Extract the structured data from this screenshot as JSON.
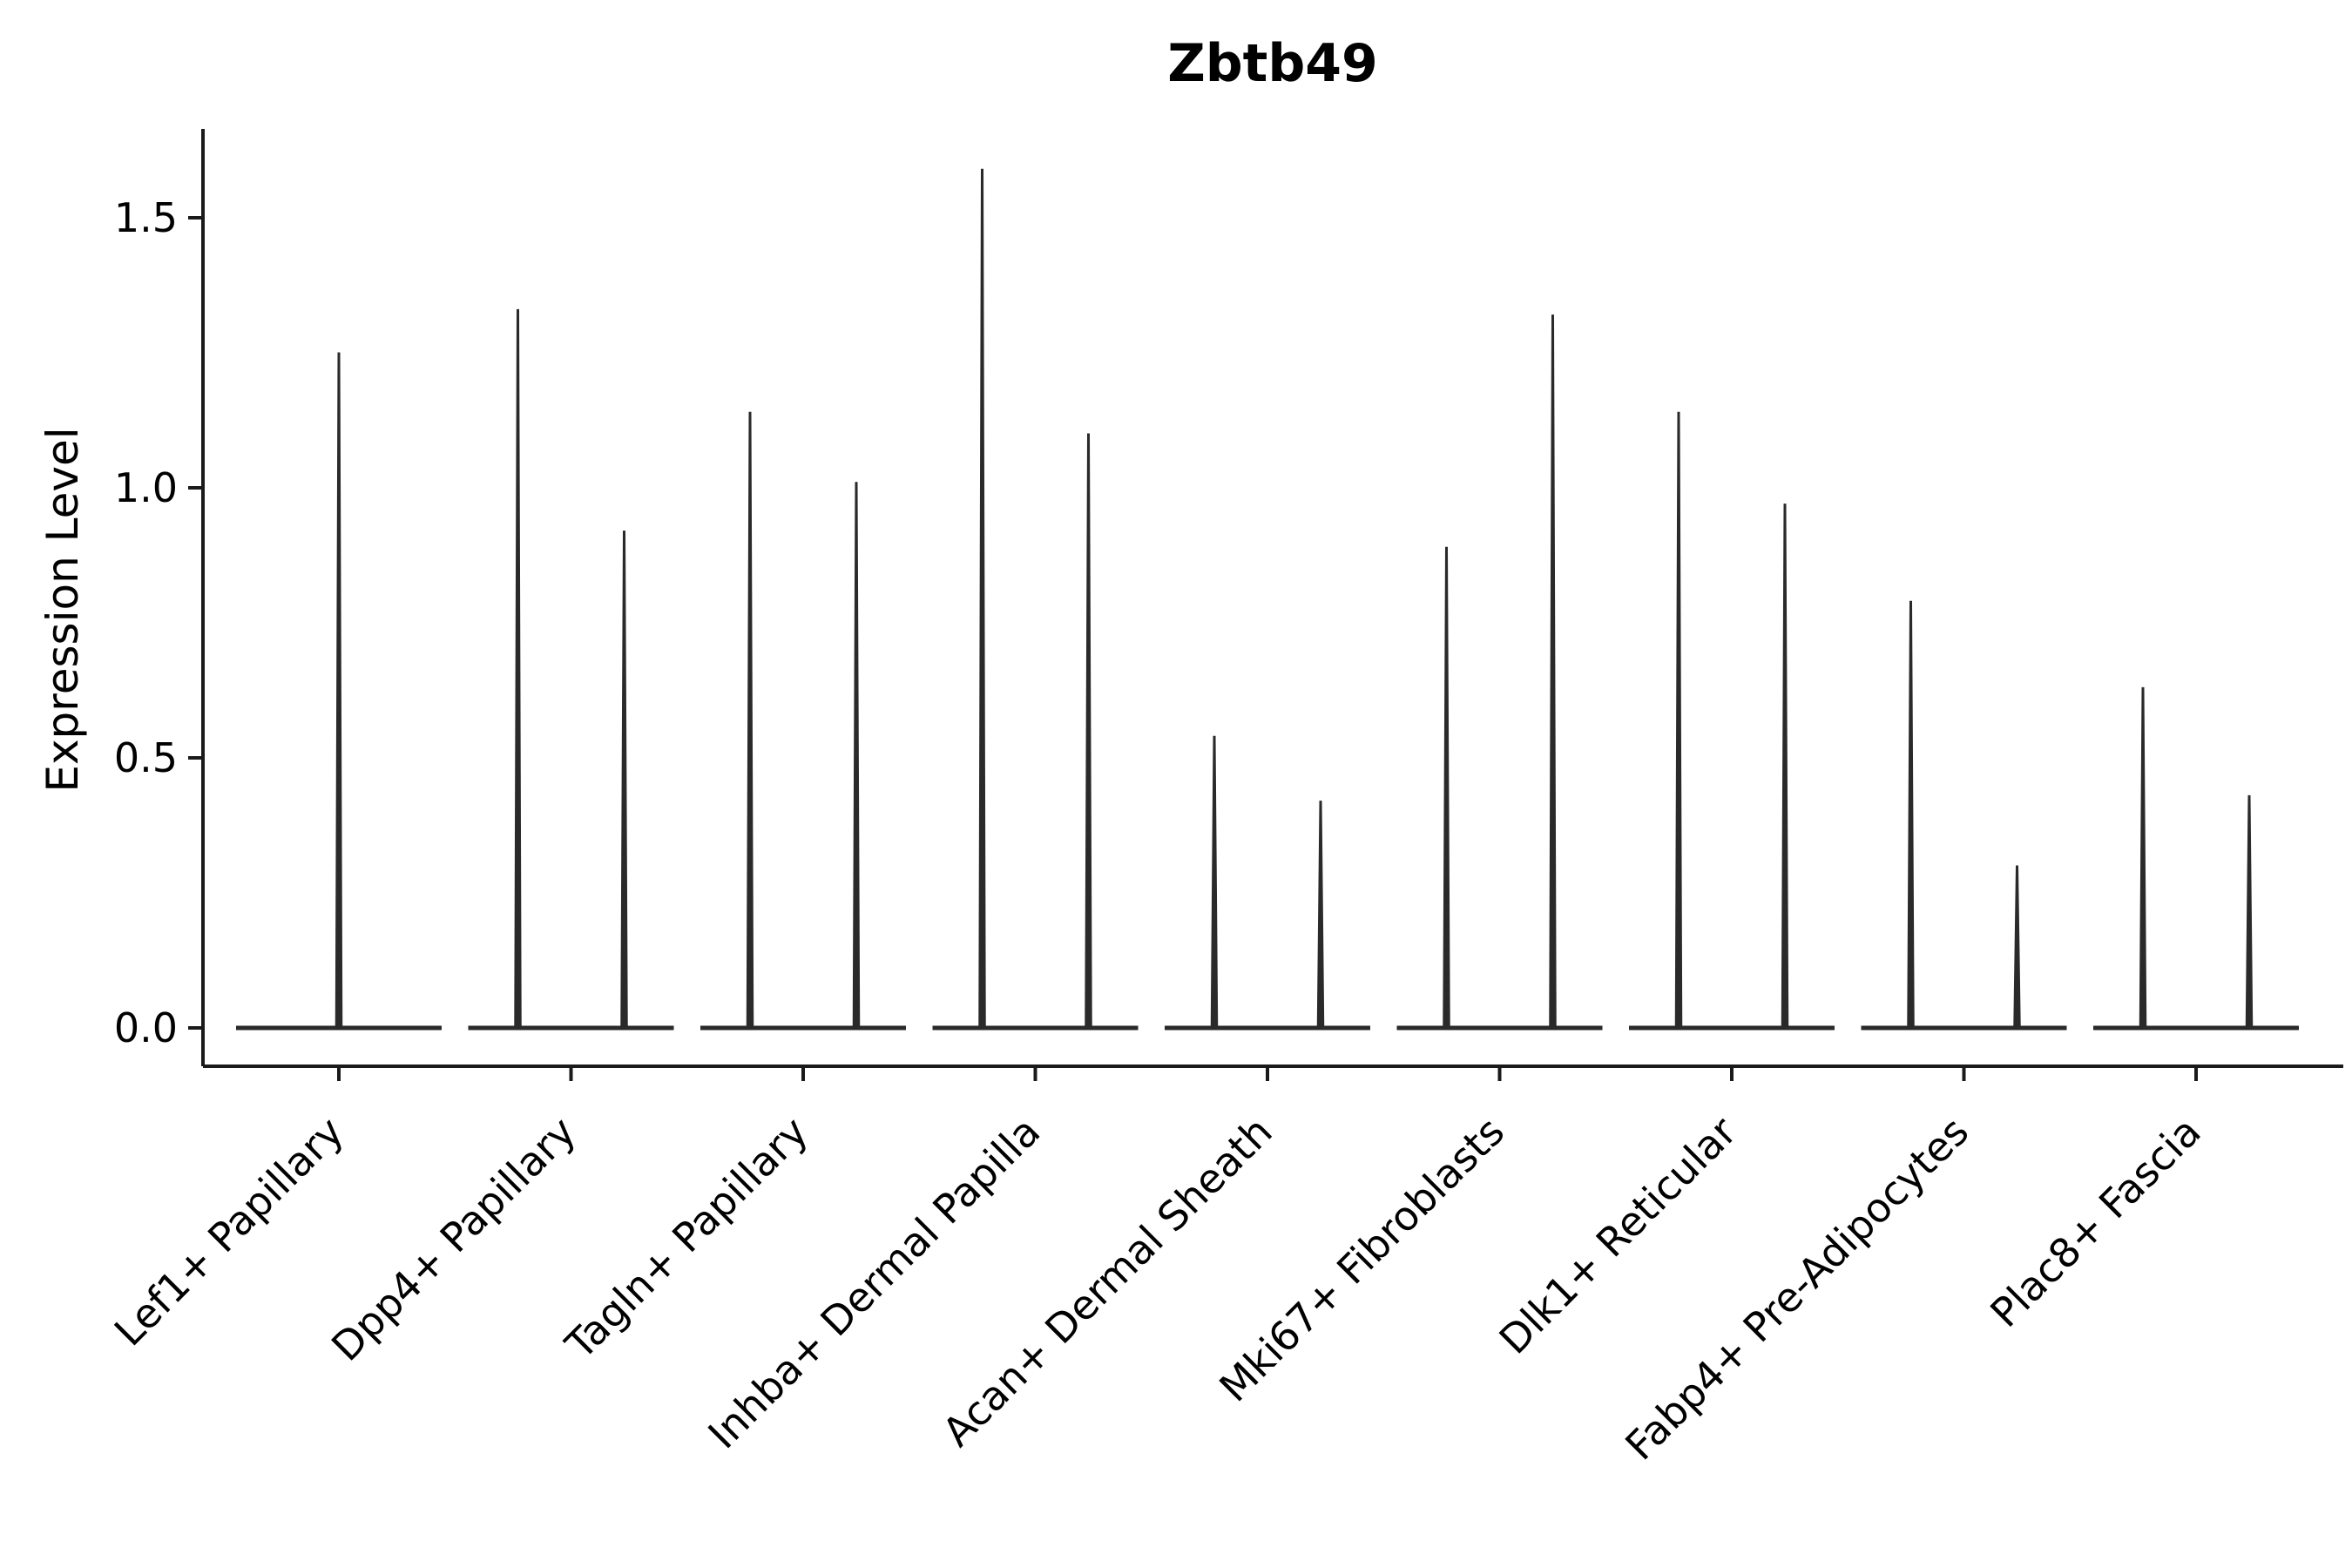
{
  "chart_data": {
    "type": "violin",
    "title": "Zbtb49",
    "ylabel": "Expression Level",
    "xlabel": "",
    "ytick_labels": [
      "0.0",
      "0.5",
      "1.0",
      "1.5"
    ],
    "ylim": [
      -0.07,
      1.66
    ],
    "grid": false,
    "legend": "none",
    "violin_color": "#2a2a2a",
    "axis_color": "#1a1a1a",
    "background": "#ffffff",
    "categories": [
      "Lef1+ Papillary",
      "Dpp4+ Papillary",
      "Tagln+ Papillary",
      "Inhba+ Dermal Papilla",
      "Acan+ Dermal Sheath",
      "Mki67+ Fibroblasts",
      "Dlk1+ Reticular",
      "Fabp4+ Pre-Adipocytes",
      "Plac8+ Fascia"
    ],
    "groups": [
      {
        "category": "Lef1+ Papillary",
        "violins": [
          {
            "slot": 0,
            "max_expression": 1.25
          }
        ]
      },
      {
        "category": "Dpp4+ Papillary",
        "violins": [
          {
            "slot": -1,
            "max_expression": 1.33
          },
          {
            "slot": 1,
            "max_expression": 0.92
          }
        ]
      },
      {
        "category": "Tagln+ Papillary",
        "violins": [
          {
            "slot": -1,
            "max_expression": 1.14
          },
          {
            "slot": 1,
            "max_expression": 1.01
          }
        ]
      },
      {
        "category": "Inhba+ Dermal Papilla",
        "violins": [
          {
            "slot": -1,
            "max_expression": 1.59
          },
          {
            "slot": 1,
            "max_expression": 1.1
          }
        ]
      },
      {
        "category": "Acan+ Dermal Sheath",
        "violins": [
          {
            "slot": -1,
            "max_expression": 0.54
          },
          {
            "slot": 1,
            "max_expression": 0.42
          }
        ]
      },
      {
        "category": "Mki67+ Fibroblasts",
        "violins": [
          {
            "slot": -1,
            "max_expression": 0.89
          },
          {
            "slot": 1,
            "max_expression": 1.32
          }
        ]
      },
      {
        "category": "Dlk1+ Reticular",
        "violins": [
          {
            "slot": -1,
            "max_expression": 1.14
          },
          {
            "slot": 1,
            "max_expression": 0.97
          }
        ]
      },
      {
        "category": "Fabp4+ Pre-Adipocytes",
        "violins": [
          {
            "slot": -1,
            "max_expression": 0.79
          },
          {
            "slot": 1,
            "max_expression": 0.3
          }
        ]
      },
      {
        "category": "Plac8+ Fascia",
        "violins": [
          {
            "slot": -1,
            "max_expression": 0.63
          },
          {
            "slot": 1,
            "max_expression": 0.43
          }
        ]
      }
    ],
    "baseline_value": 0.0
  }
}
